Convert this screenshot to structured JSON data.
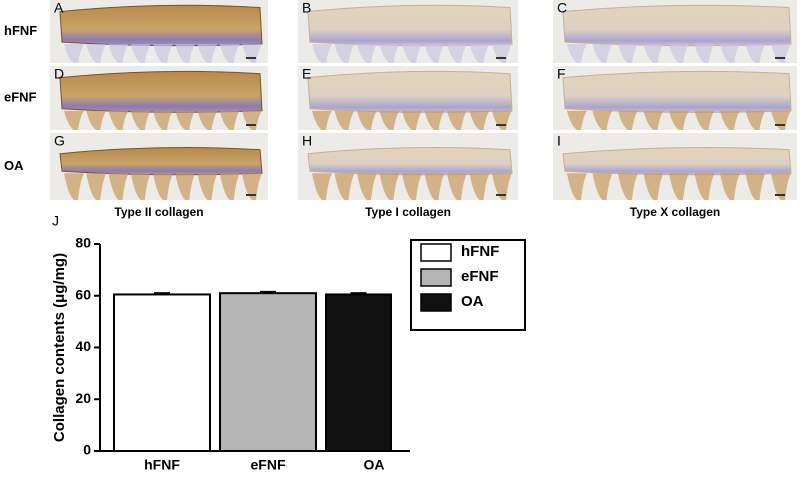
{
  "panels": {
    "letters": [
      "A",
      "B",
      "C",
      "D",
      "E",
      "F",
      "G",
      "H",
      "I"
    ],
    "rows": [
      "hFNF",
      "eFNF",
      "OA"
    ],
    "columns": [
      "Type II collagen",
      "Type I collagen",
      "Type X collagen"
    ]
  },
  "chart_data": {
    "type": "bar",
    "panel_label": "J",
    "ylabel": "Collagen contents (μg/mg)",
    "categories": [
      "hFNF",
      "eFNF",
      "OA"
    ],
    "values": [
      60.5,
      61,
      60.5
    ],
    "errors": [
      0.5,
      0.5,
      0.5
    ],
    "colors": [
      "#ffffff",
      "#b4b4b4",
      "#111111"
    ],
    "ylim": [
      0,
      80
    ],
    "yticks": [
      0,
      20,
      40,
      60,
      80
    ],
    "legend": "upper right"
  }
}
